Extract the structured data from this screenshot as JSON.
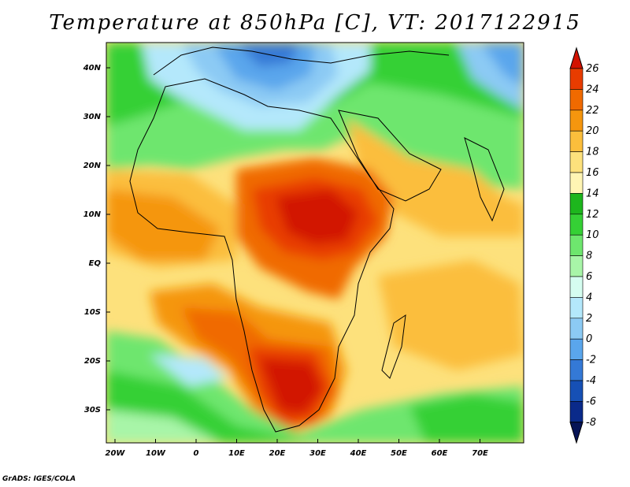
{
  "title": "Temperature at 850hPa [C], VT: 2017122915",
  "credit": "GrADS: IGES/COLA",
  "map": {
    "lat_labels": [
      "40N",
      "30N",
      "20N",
      "10N",
      "EQ",
      "10S",
      "20S",
      "30S"
    ],
    "lon_labels": [
      "20W",
      "10W",
      "0",
      "10E",
      "20E",
      "30E",
      "40E",
      "50E",
      "60E",
      "70E"
    ]
  },
  "colorbar": {
    "labels": [
      "26",
      "24",
      "22",
      "20",
      "18",
      "16",
      "14",
      "12",
      "10",
      "8",
      "6",
      "4",
      "2",
      "0",
      "-2",
      "-4",
      "-6",
      "-8"
    ],
    "colors": [
      "#d21200",
      "#e83c00",
      "#f06a00",
      "#f5960e",
      "#fbbe3c",
      "#fde17c",
      "#fff5b4",
      "#1db61d",
      "#35d035",
      "#6ee66e",
      "#a8f5a8",
      "#d5fdf0",
      "#b4e8fb",
      "#8ccaf4",
      "#5aa6ec",
      "#3479d6",
      "#1650b5",
      "#0a2a8a",
      "#061456"
    ]
  }
}
